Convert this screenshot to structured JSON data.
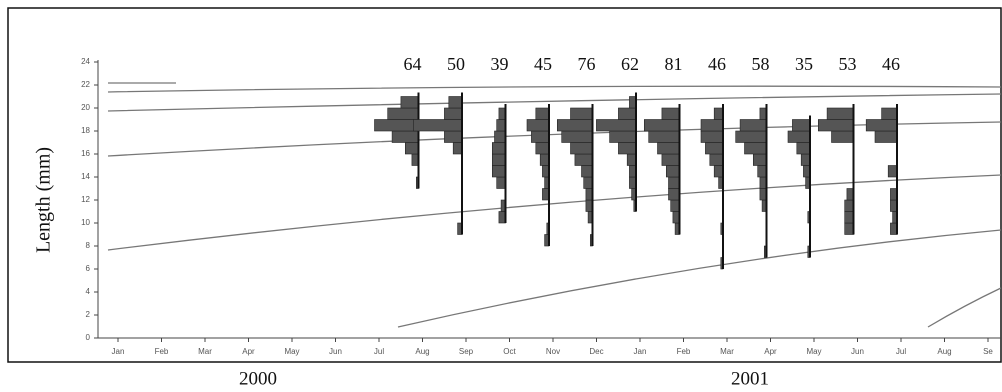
{
  "chart_data": {
    "type": "length-frequency",
    "y_label": "Length (mm)",
    "ylim": [
      0,
      24
    ],
    "yticks": [
      0,
      2,
      4,
      6,
      8,
      10,
      12,
      14,
      16,
      18,
      20,
      22,
      24
    ],
    "categories": [
      "Jan",
      "Feb",
      "Mar",
      "Apr",
      "May",
      "Jun",
      "Jul",
      "Aug",
      "Sep",
      "Oct",
      "Nov",
      "Dec",
      "Jan",
      "Feb",
      "Mar",
      "Apr",
      "May",
      "Jun",
      "Jul",
      "Aug",
      "Se"
    ],
    "years": [
      "2000",
      "2001"
    ],
    "length_classes": [
      6,
      7,
      8,
      9,
      10,
      11,
      12,
      13,
      14,
      15,
      16,
      17,
      18,
      19,
      20,
      21
    ],
    "n": [
      null,
      null,
      null,
      null,
      null,
      null,
      null,
      64,
      50,
      39,
      45,
      76,
      62,
      81,
      46,
      58,
      35,
      53,
      46,
      null,
      null
    ],
    "frequencies": [
      null,
      null,
      null,
      null,
      null,
      null,
      null,
      [
        0,
        0,
        0,
        0,
        0,
        0,
        0,
        1,
        0,
        3,
        6,
        12,
        20,
        14,
        8,
        0
      ],
      [
        0,
        0,
        0,
        2,
        0,
        0,
        0,
        0,
        0,
        0,
        4,
        8,
        22,
        8,
        6,
        0
      ],
      [
        0,
        0,
        0,
        0,
        3,
        2,
        0,
        4,
        6,
        6,
        6,
        5,
        4,
        3,
        0,
        0
      ],
      [
        0,
        0,
        2,
        1,
        0,
        0,
        3,
        2,
        3,
        4,
        6,
        8,
        10,
        6,
        0,
        0
      ],
      [
        0,
        0,
        1,
        0,
        2,
        3,
        3,
        4,
        5,
        8,
        10,
        14,
        16,
        10,
        0,
        0
      ],
      [
        0,
        0,
        0,
        0,
        0,
        1,
        2,
        3,
        3,
        4,
        8,
        12,
        18,
        8,
        3,
        0
      ],
      [
        0,
        0,
        0,
        2,
        3,
        4,
        5,
        5,
        6,
        8,
        10,
        14,
        16,
        8,
        0,
        0
      ],
      [
        1,
        0,
        0,
        1,
        0,
        0,
        0,
        2,
        4,
        6,
        8,
        10,
        10,
        4,
        0,
        0
      ],
      [
        0,
        1,
        0,
        0,
        0,
        2,
        3,
        3,
        4,
        6,
        10,
        14,
        12,
        3,
        0,
        0
      ],
      [
        0,
        1,
        0,
        0,
        1,
        0,
        0,
        2,
        3,
        4,
        6,
        10,
        8,
        0,
        0,
        0
      ],
      [
        0,
        0,
        0,
        4,
        4,
        4,
        3,
        0,
        0,
        0,
        0,
        10,
        16,
        12,
        0,
        0
      ],
      [
        0,
        0,
        0,
        3,
        2,
        3,
        3,
        0,
        4,
        0,
        0,
        10,
        14,
        7,
        0,
        0
      ],
      null,
      null
    ],
    "bar_color": "#555555"
  }
}
